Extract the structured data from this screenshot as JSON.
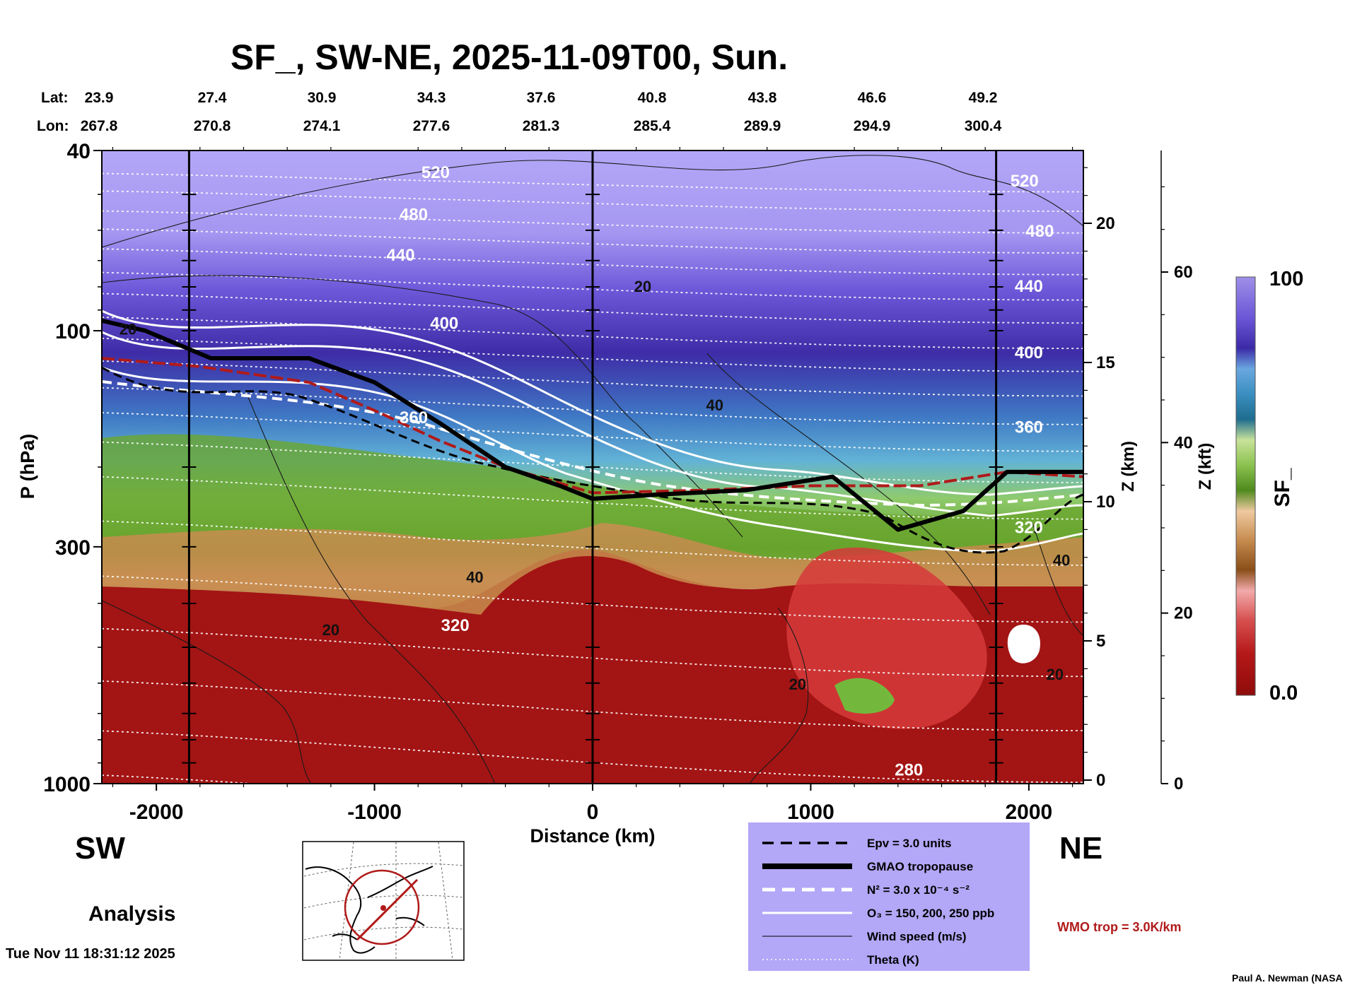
{
  "title": "SF_, SW-NE, 2025-11-09T00, Sun.",
  "coords": {
    "lat_label": "Lat:",
    "lon_label": "Lon:",
    "lat": [
      "23.9",
      "27.4",
      "30.9",
      "34.3",
      "37.6",
      "40.8",
      "43.8",
      "46.6",
      "49.2"
    ],
    "lon": [
      "267.8",
      "270.8",
      "274.1",
      "277.6",
      "281.3",
      "285.4",
      "289.9",
      "294.9",
      "300.4"
    ]
  },
  "ends": {
    "left": "SW",
    "right": "NE"
  },
  "analysis_label": "Analysis",
  "timestamp": "Tue Nov 11 18:31:12 2025",
  "credit": "Paul A. Newman (NASA",
  "wmo_label": "WMO trop = 3.0K/km",
  "colors": {
    "accent_red": "#b01a1a",
    "legend_bg": "#b3a7f7",
    "low_sf": "#9b1010",
    "high_sf": "#4a30b8"
  },
  "legend": {
    "items": [
      {
        "label": "Epv = 3.0 units",
        "style": "dashed-black"
      },
      {
        "label": "GMAO tropopause",
        "style": "thick-black"
      },
      {
        "label": "N² = 3.0 x 10⁻⁴ s⁻²",
        "style": "dashed-white"
      },
      {
        "label": "O₃ = 150, 200, 250 ppb",
        "style": "solid-white"
      },
      {
        "label": "Wind speed (m/s)",
        "style": "thin-black"
      },
      {
        "label": "Theta (K)",
        "style": "dotted-white"
      }
    ]
  },
  "colorbar": {
    "label": "SF_",
    "max_label": "100",
    "min_label": "0.0"
  },
  "chart_data": {
    "type": "heatmap",
    "title": "SF_, SW-NE, 2025-11-09T00, Sun.",
    "xlabel": "Distance (km)",
    "ylabel": "P (hPa)",
    "y2label": "Z (km)",
    "y3label": "Z (kft)",
    "xlim": [
      -2250,
      2250
    ],
    "ylim": [
      1000,
      40
    ],
    "x_ticks": [
      -2000,
      -1000,
      0,
      1000,
      2000
    ],
    "x_tick_labels": [
      "-2000",
      "-1000",
      "0",
      "1000",
      "2000"
    ],
    "y_ticks": [
      40,
      100,
      300,
      1000
    ],
    "y_tick_labels": [
      "40",
      "100",
      "300",
      "1000"
    ],
    "z_km_ticks": [
      0,
      5,
      10,
      15,
      20
    ],
    "z_km_tick_labels": [
      "0",
      "5",
      "10",
      "15",
      "20"
    ],
    "z_kft_ticks": [
      0,
      20,
      40,
      60
    ],
    "z_kft_tick_labels": [
      "0",
      "20",
      "40",
      "60"
    ],
    "vertical_lines_km": [
      -1850,
      0,
      1850
    ],
    "colorbar_range": [
      0.0,
      100
    ],
    "tropopause_hPa": {
      "x": [
        -2250,
        -2050,
        -1750,
        -1300,
        -1000,
        -700,
        -400,
        -150,
        0,
        300,
        700,
        1100,
        1400,
        1700,
        1900,
        2250
      ],
      "p": [
        95,
        100,
        115,
        115,
        130,
        160,
        200,
        220,
        235,
        230,
        225,
        210,
        275,
        250,
        205,
        205
      ]
    },
    "wmo_trop_hPa": {
      "x": [
        -2250,
        -1800,
        -1300,
        -1000,
        -700,
        -400,
        0,
        500,
        1000,
        1500,
        1900,
        2250
      ],
      "p": [
        115,
        120,
        130,
        150,
        175,
        200,
        228,
        225,
        220,
        220,
        205,
        210
      ]
    },
    "theta_labels": [
      {
        "value": "520",
        "x": -720,
        "p": 46
      },
      {
        "value": "480",
        "x": -820,
        "p": 57
      },
      {
        "value": "440",
        "x": -880,
        "p": 70
      },
      {
        "value": "400",
        "x": -680,
        "p": 99
      },
      {
        "value": "360",
        "x": -820,
        "p": 160
      },
      {
        "value": "320",
        "x": -630,
        "p": 460
      },
      {
        "value": "280",
        "x": 1450,
        "p": 960
      },
      {
        "value": "520",
        "x": 1980,
        "p": 48
      },
      {
        "value": "480",
        "x": 2050,
        "p": 62
      },
      {
        "value": "440",
        "x": 2000,
        "p": 82
      },
      {
        "value": "400",
        "x": 2000,
        "p": 115
      },
      {
        "value": "360",
        "x": 2000,
        "p": 168
      },
      {
        "value": "320",
        "x": 2000,
        "p": 280
      }
    ],
    "wind_labels": [
      {
        "value": "20",
        "x": -2130,
        "p": 102
      },
      {
        "value": "20",
        "x": 230,
        "p": 82
      },
      {
        "value": "40",
        "x": 560,
        "p": 150
      },
      {
        "value": "40",
        "x": -540,
        "p": 360
      },
      {
        "value": "20",
        "x": -1200,
        "p": 470
      },
      {
        "value": "20",
        "x": 940,
        "p": 620
      },
      {
        "value": "40",
        "x": 2150,
        "p": 330
      },
      {
        "value": "20",
        "x": 2120,
        "p": 590
      }
    ]
  }
}
